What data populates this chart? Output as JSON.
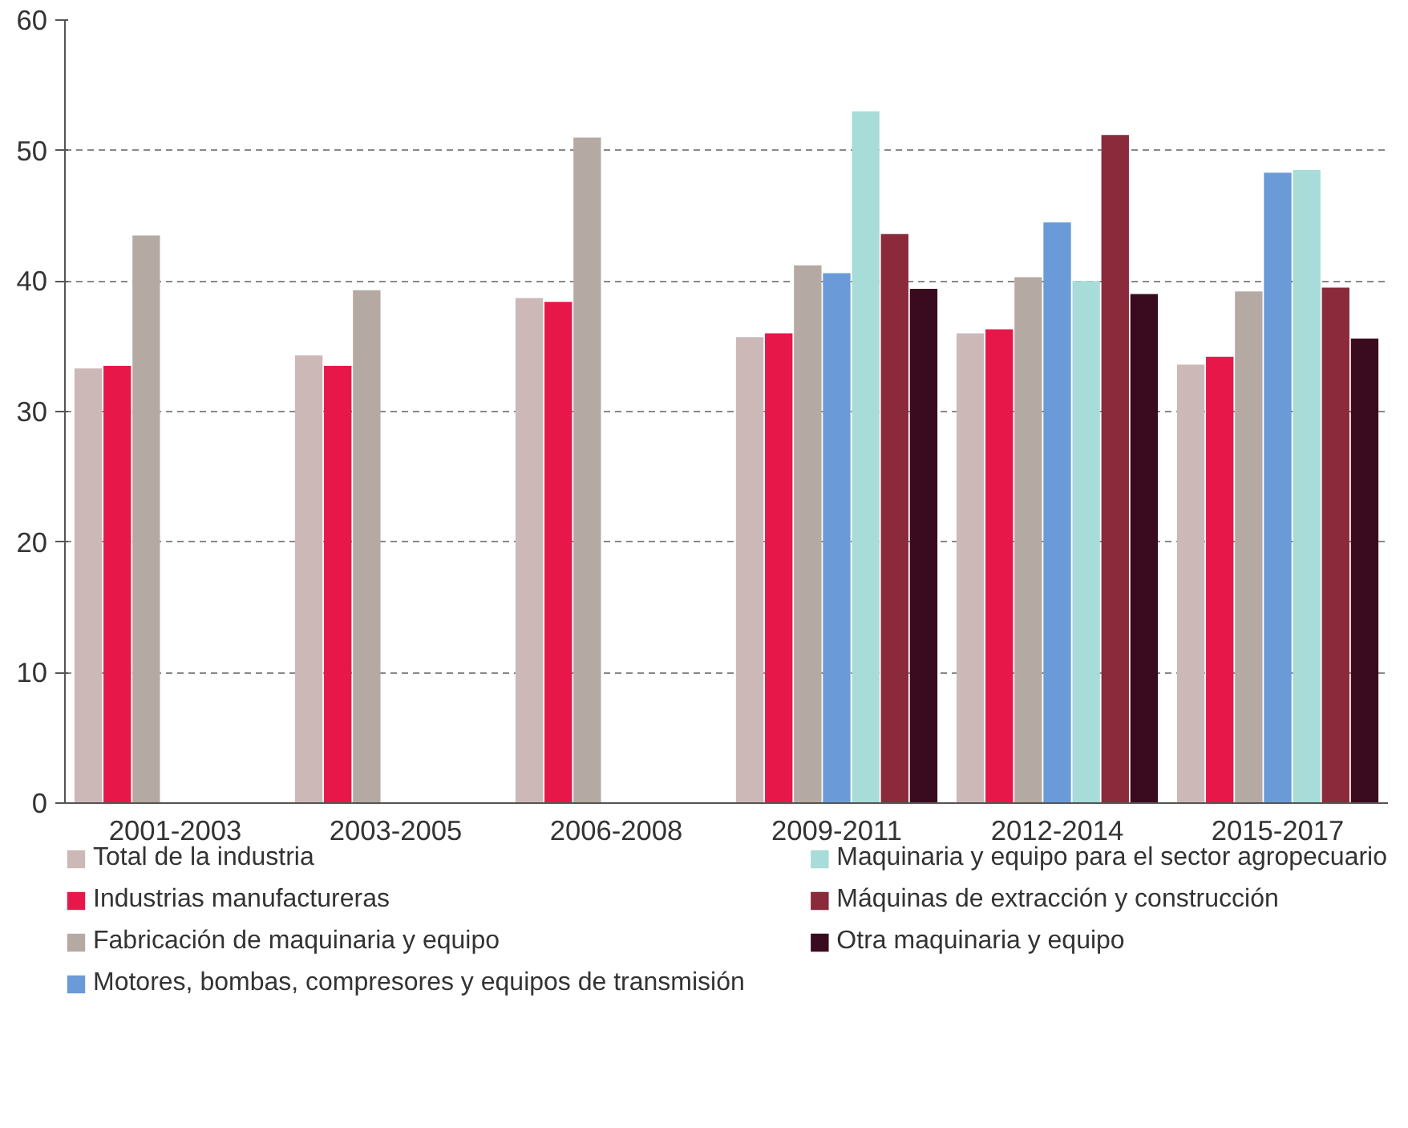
{
  "chart_data": {
    "type": "bar",
    "categories": [
      "2001-2003",
      "2003-2005",
      "2006-2008",
      "2009-2011",
      "2012-2014",
      "2015-2017"
    ],
    "ylim": [
      0,
      60
    ],
    "yticks": [
      0,
      10,
      20,
      30,
      40,
      50,
      60
    ],
    "grid": "y",
    "legend": "bottom",
    "series": [
      {
        "name": "Total de la industria",
        "color": "#cdb8b8",
        "values": [
          33.3,
          34.3,
          38.7,
          35.7,
          36.0,
          33.6
        ]
      },
      {
        "name": "Industrias manufactureras",
        "color": "#e8174a",
        "values": [
          33.5,
          33.5,
          38.4,
          36.0,
          36.3,
          34.2
        ]
      },
      {
        "name": "Fabricación de maquinaria y equipo",
        "color": "#b5aaa3",
        "values": [
          43.5,
          39.3,
          51.0,
          41.2,
          40.3,
          39.2
        ]
      },
      {
        "name": "Motores, bombas, compresores y equipos de transmisión",
        "color": "#6a9bd8",
        "values": [
          null,
          null,
          null,
          40.6,
          44.5,
          48.3
        ]
      },
      {
        "name": "Maquinaria y equipo para el sector agropecuario",
        "color": "#a8dcd9",
        "values": [
          null,
          null,
          null,
          53.0,
          40.0,
          48.5
        ]
      },
      {
        "name": "Máquinas de extracción y construcción",
        "color": "#8a2a3a",
        "values": [
          null,
          null,
          null,
          43.6,
          51.2,
          39.5
        ]
      },
      {
        "name": "Otra maquinaria y equipo",
        "color": "#3a0b1e",
        "values": [
          null,
          null,
          null,
          39.4,
          39.0,
          35.6
        ]
      }
    ]
  }
}
